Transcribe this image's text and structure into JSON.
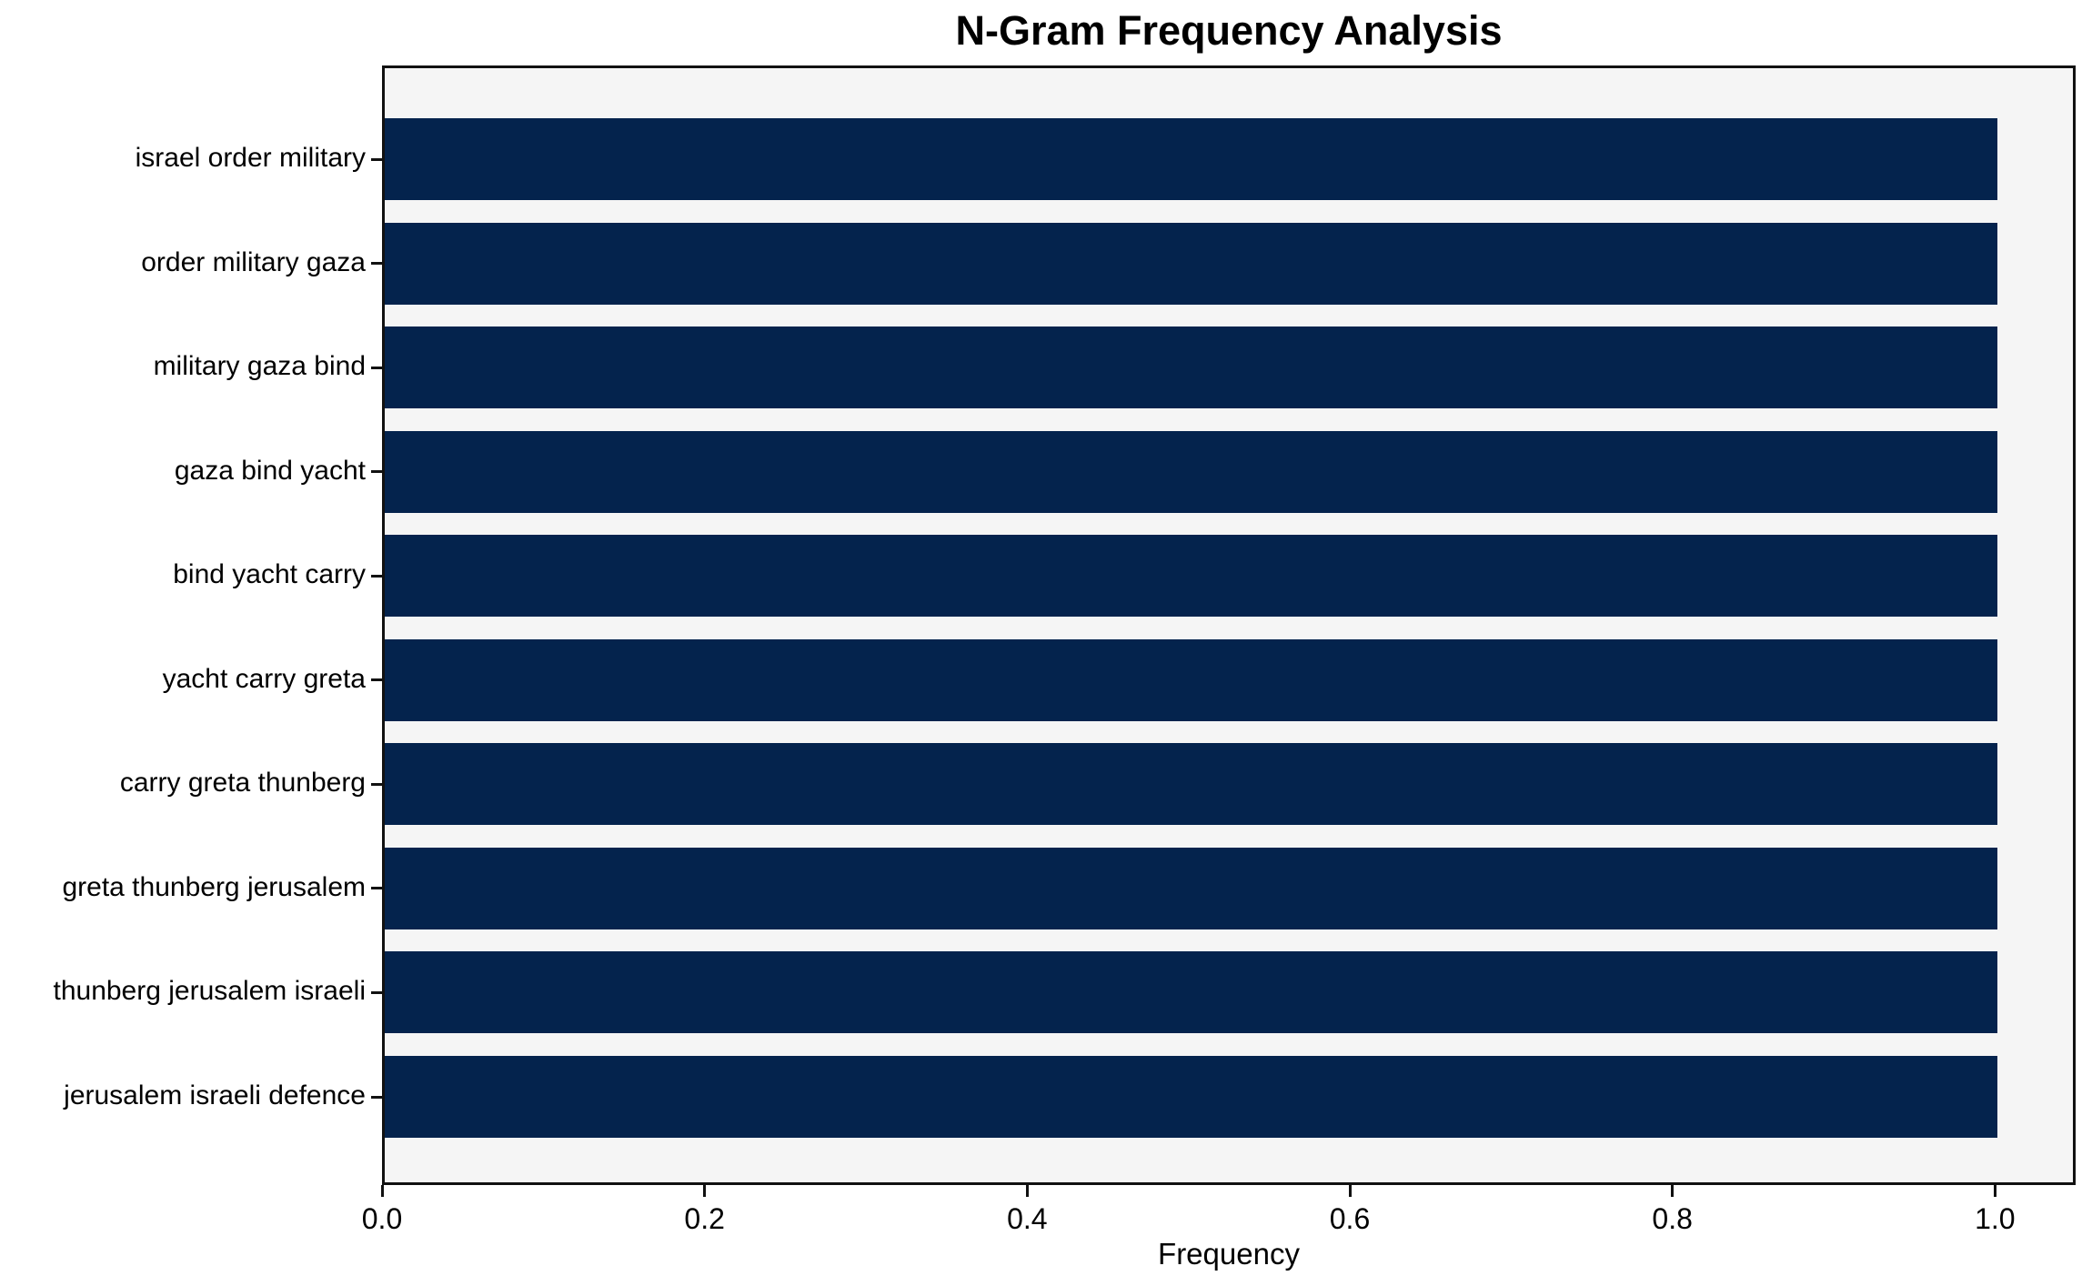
{
  "chart_data": {
    "type": "bar",
    "orientation": "horizontal",
    "title": "N-Gram Frequency Analysis",
    "xlabel": "Frequency",
    "ylabel": "",
    "categories": [
      "israel order military",
      "order military gaza",
      "military gaza bind",
      "gaza bind yacht",
      "bind yacht carry",
      "yacht carry greta",
      "carry greta thunberg",
      "greta thunberg jerusalem",
      "thunberg jerusalem israeli",
      "jerusalem israeli defence"
    ],
    "values": [
      1.0,
      1.0,
      1.0,
      1.0,
      1.0,
      1.0,
      1.0,
      1.0,
      1.0,
      1.0
    ],
    "x_ticks": [
      "0.0",
      "0.2",
      "0.4",
      "0.6",
      "0.8",
      "1.0"
    ],
    "x_tick_values": [
      0.0,
      0.2,
      0.4,
      0.6,
      0.8,
      1.0
    ],
    "xlim": [
      0.0,
      1.05
    ],
    "grid": false,
    "legend": null,
    "colors": {
      "bar": "#04234d",
      "plot_background": "#f5f5f5",
      "figure_background": "#ffffff",
      "spine": "#111111",
      "text": "#000000"
    }
  }
}
